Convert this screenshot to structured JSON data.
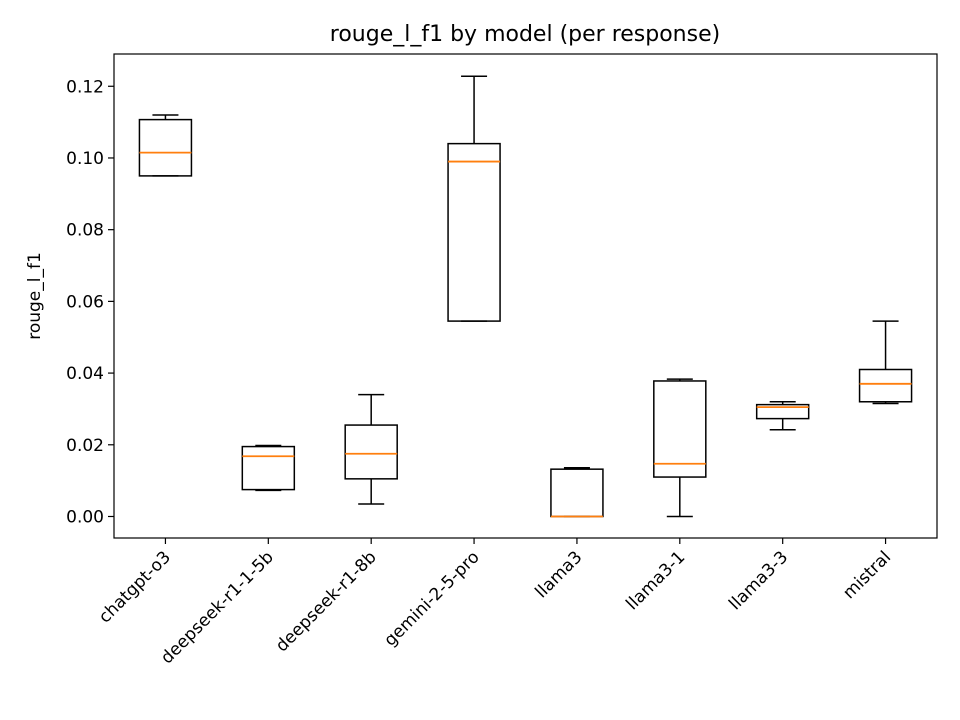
{
  "chart_data": {
    "type": "box",
    "title": "rouge_l_f1 by model (per response)",
    "xlabel": "",
    "ylabel": "rouge_l_f1",
    "ylim": [
      -0.006,
      0.129
    ],
    "yticks": [
      0.0,
      0.02,
      0.04,
      0.06,
      0.08,
      0.1,
      0.12
    ],
    "ytick_labels": [
      "0.00",
      "0.02",
      "0.04",
      "0.06",
      "0.08",
      "0.10",
      "0.12"
    ],
    "grid": false,
    "legend": "none",
    "median_color": "#ff7f0e",
    "box_color": "#000000",
    "categories": [
      "chatgpt-o3",
      "deepseek-r1-1-5b",
      "deepseek-r1-8b",
      "gemini-2-5-pro",
      "llama3",
      "llama3-1",
      "llama3-3",
      "mistral"
    ],
    "boxes": [
      {
        "whisker_low": 0.095,
        "q1": 0.095,
        "median": 0.1015,
        "q3": 0.1107,
        "whisker_high": 0.112
      },
      {
        "whisker_low": 0.0073,
        "q1": 0.0075,
        "median": 0.0168,
        "q3": 0.0195,
        "whisker_high": 0.0198
      },
      {
        "whisker_low": 0.0035,
        "q1": 0.0105,
        "median": 0.0175,
        "q3": 0.0255,
        "whisker_high": 0.034
      },
      {
        "whisker_low": 0.0545,
        "q1": 0.0545,
        "median": 0.099,
        "q3": 0.104,
        "whisker_high": 0.1228
      },
      {
        "whisker_low": 0.0,
        "q1": 0.0,
        "median": 0.0,
        "q3": 0.0132,
        "whisker_high": 0.0136
      },
      {
        "whisker_low": 0.0,
        "q1": 0.011,
        "median": 0.0147,
        "q3": 0.0378,
        "whisker_high": 0.0383
      },
      {
        "whisker_low": 0.0242,
        "q1": 0.0273,
        "median": 0.0305,
        "q3": 0.0312,
        "whisker_high": 0.032
      },
      {
        "whisker_low": 0.0315,
        "q1": 0.032,
        "median": 0.037,
        "q3": 0.041,
        "whisker_high": 0.0545
      }
    ]
  }
}
